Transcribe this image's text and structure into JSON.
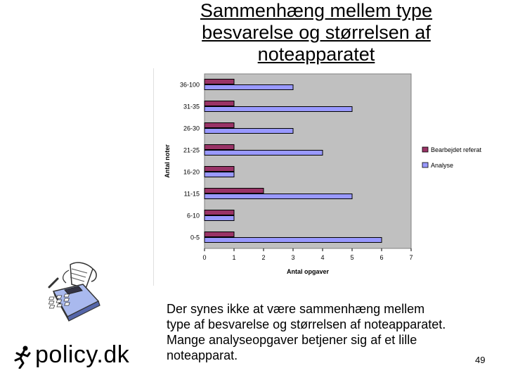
{
  "title_lines": [
    "Sammenhæng mellem type",
    "besvarelse og størrelsen af",
    "noteapparatet"
  ],
  "body_lines": [
    "Der synes ikke at være sammenhæng mellem",
    "type af besvarelse og størrelsen af noteapparatet.",
    "Mange analyseopgaver betjener sig af et lille",
    "noteapparat."
  ],
  "page_number": "49",
  "logo": {
    "text": "policy.dk",
    "icon": "runner-icon"
  },
  "clipart": {
    "icon": "calculator-clipart-icon"
  },
  "chart_data": {
    "type": "bar",
    "orientation": "horizontal",
    "categories": [
      "36-100",
      "31-35",
      "26-30",
      "21-25",
      "16-20",
      "11-15",
      "6-10",
      "0-5"
    ],
    "series": [
      {
        "name": "Bearbejdet referat",
        "color": "#993366",
        "values": [
          1,
          1,
          1,
          1,
          1,
          2,
          1,
          1
        ]
      },
      {
        "name": "Analyse",
        "color": "#9999ff",
        "values": [
          3,
          5,
          3,
          4,
          1,
          5,
          1,
          6
        ]
      }
    ],
    "xlabel": "Antal opgaver",
    "ylabel": "Antal noter",
    "xlim": [
      0,
      7
    ],
    "xticks": [
      "0",
      "1",
      "2",
      "3",
      "4",
      "5",
      "6",
      "7"
    ],
    "plot_background": "#c0c0c0",
    "grid": false,
    "legend_position": "right"
  }
}
